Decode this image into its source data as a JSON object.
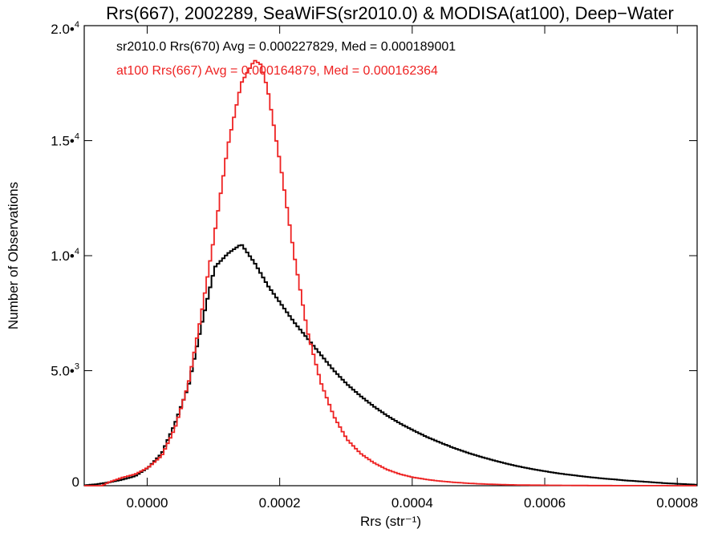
{
  "chart_data": {
    "type": "line",
    "title": "Rrs(667), 2002289, SeaWiFS(sr2010.0) & MODISA(at100), Deep−Water",
    "xlabel": "Rrs (str⁻¹)",
    "ylabel": "Number of Observations",
    "xlim": [
      -9.5e-05,
      0.00083
    ],
    "ylim": [
      0,
      20000
    ],
    "x_ticks": [
      {
        "value": 0.0,
        "label": "0.0000"
      },
      {
        "value": 0.0002,
        "label": "0.0002"
      },
      {
        "value": 0.0004,
        "label": "0.0004"
      },
      {
        "value": 0.0006,
        "label": "0.0006"
      },
      {
        "value": 0.0008,
        "label": "0.0008"
      }
    ],
    "y_ticks": [
      {
        "value": 0,
        "mantissa": "0",
        "exponent": ""
      },
      {
        "value": 5000,
        "mantissa": "5.0•",
        "exponent": "3"
      },
      {
        "value": 10000,
        "mantissa": "1.0•",
        "exponent": "4"
      },
      {
        "value": 15000,
        "mantissa": "1.5•",
        "exponent": "4"
      },
      {
        "value": 20000,
        "mantissa": "2.0•",
        "exponent": "4"
      }
    ],
    "series": [
      {
        "name": "sr2010.0 Rrs(670)",
        "color": "#000000",
        "stat_label": "sr2010.0 Rrs(670) Avg = 0.000227829, Med = 0.000189001",
        "stat_color": "#000000",
        "x": [
          -9.5e-05,
          -8e-05,
          -6e-05,
          -4e-05,
          -2e-05,
          0.0,
          2e-05,
          4e-05,
          6e-05,
          8e-05,
          0.0001,
          0.00012,
          0.00014,
          0.00016,
          0.00018,
          0.0002,
          0.00022,
          0.00024,
          0.00026,
          0.00028,
          0.0003,
          0.00032,
          0.00034,
          0.00036,
          0.00038,
          0.0004,
          0.00042,
          0.00044,
          0.00046,
          0.00048,
          0.0005,
          0.00052,
          0.00054,
          0.00056,
          0.00058,
          0.0006,
          0.00062,
          0.00064,
          0.00066,
          0.00068,
          0.0007,
          0.00072,
          0.00074,
          0.00076,
          0.00078,
          0.0008,
          0.00083
        ],
        "y": [
          20,
          60,
          140,
          260,
          420,
          800,
          1400,
          2700,
          4300,
          7000,
          9500,
          10100,
          10500,
          9700,
          8700,
          7900,
          7100,
          6400,
          5700,
          5000,
          4400,
          3900,
          3450,
          3050,
          2700,
          2400,
          2120,
          1880,
          1650,
          1450,
          1270,
          1110,
          960,
          830,
          720,
          620,
          530,
          460,
          390,
          330,
          280,
          230,
          190,
          150,
          110,
          80,
          40
        ]
      },
      {
        "name": "at100 Rrs(667)",
        "color": "#ee2222",
        "stat_label": "at100 Rrs(667) Avg = 0.000164879, Med = 0.000162364",
        "stat_color": "#ee2222",
        "x": [
          -9.5e-05,
          -7e-05,
          -6e-05,
          -4e-05,
          -2e-05,
          0.0,
          2e-05,
          4e-05,
          6e-05,
          8e-05,
          0.0001,
          0.00012,
          0.00014,
          0.00016,
          0.00017,
          0.00018,
          0.0002,
          0.00022,
          0.00024,
          0.00026,
          0.00028,
          0.0003,
          0.00032,
          0.00034,
          0.00036,
          0.00038,
          0.0004,
          0.00042,
          0.00044,
          0.00046,
          0.00048,
          0.0005,
          0.00053,
          0.00056,
          0.0006,
          0.00065,
          0.0007,
          0.00083
        ],
        "y": [
          0,
          0,
          150,
          350,
          500,
          800,
          1300,
          2500,
          4400,
          7500,
          11000,
          14800,
          17500,
          18500,
          18300,
          17200,
          13800,
          10000,
          6700,
          4500,
          3000,
          2000,
          1400,
          1000,
          700,
          500,
          360,
          270,
          200,
          150,
          110,
          80,
          50,
          30,
          20,
          10,
          5,
          0
        ]
      }
    ]
  }
}
